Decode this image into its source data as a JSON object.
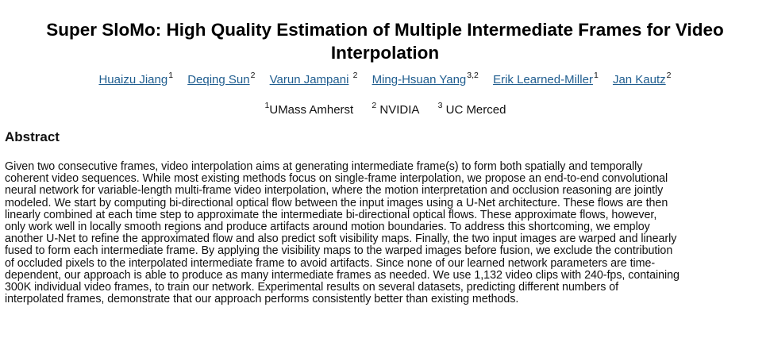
{
  "title": {
    "line1": "Super SloMo: High Quality Estimation of Multiple Intermediate Frames for Video",
    "line2": "Interpolation"
  },
  "authors": [
    {
      "name": "Huaizu Jiang",
      "sup": "1"
    },
    {
      "name": "Deqing Sun",
      "sup": "2"
    },
    {
      "name": "Varun Jampani",
      "sup": "2"
    },
    {
      "name": "Ming-Hsuan Yang",
      "sup": "3,2"
    },
    {
      "name": "Erik Learned-Miller",
      "sup": "1"
    },
    {
      "name": "Jan Kautz",
      "sup": "2"
    }
  ],
  "affiliations": [
    {
      "sup": "1",
      "name": "UMass Amherst"
    },
    {
      "sup": "2",
      "name": "NVIDIA"
    },
    {
      "sup": "3",
      "name": "UC Merced"
    }
  ],
  "abstract": {
    "heading": "Abstract",
    "lines": [
      "Given two consecutive frames, video interpolation aims at generating intermediate frame(s) to form both spatially and temporally",
      "coherent video sequences. While most existing methods focus on single-frame interpolation, we propose an end-to-end convolutional",
      "neural network for variable-length multi-frame video interpolation, where the motion interpretation and occlusion reasoning are jointly",
      "modeled. We start by computing bi-directional optical flow between the input images using a U-Net architecture. These flows are then",
      "linearly combined at each time step to approximate the intermediate bi-directional optical flows. These approximate flows, however,",
      "only work well in locally smooth regions and produce artifacts around motion boundaries. To address this shortcoming, we employ",
      "another U-Net to refine the approximated flow and also predict soft visibility maps. Finally, the two input images are warped and linearly",
      "fused to form each intermediate frame. By applying the visibility maps to the warped images before fusion, we exclude the contribution",
      "of occluded pixels to the interpolated intermediate frame to avoid artifacts. Since none of our learned network parameters are time-",
      "dependent, our approach is able to produce as many intermediate frames as needed. We use 1,132 video clips with 240-fps, containing",
      "300K individual video frames, to train our network. Experimental results on several datasets, predicting different numbers of",
      "interpolated frames, demonstrate that our approach performs consistently better than existing methods."
    ]
  },
  "colors": {
    "link": "#1f5d8f",
    "text": "#111111",
    "background": "#ffffff"
  }
}
